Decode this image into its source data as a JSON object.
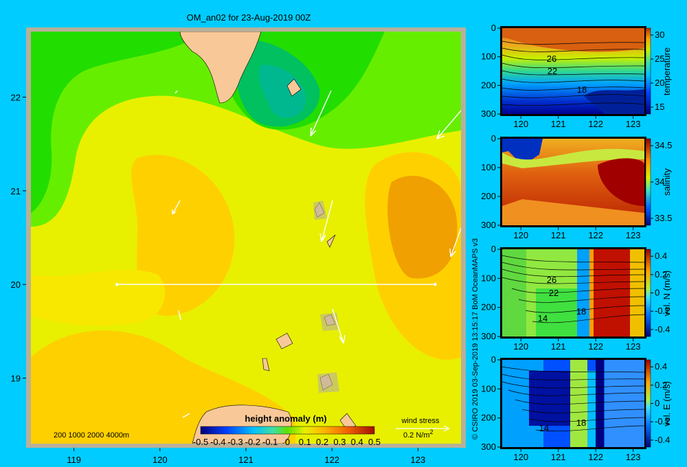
{
  "title": "OM_an02 for 23-Aug-2019 00Z",
  "side_text": "© CSIRO 2019   03-Sep-2019 13:15:17 BoM OceanMAPS v3",
  "map": {
    "lon_ticks": [
      "119",
      "120",
      "121",
      "122",
      "123"
    ],
    "lat_ticks": [
      "22",
      "21",
      "20",
      "19"
    ],
    "lon_range": [
      118.5,
      123.5
    ],
    "lat_range": [
      18.3,
      22.7
    ],
    "section_line": {
      "lon": [
        119.5,
        123.2
      ],
      "lat": [
        20.0,
        20.0
      ]
    },
    "depth_legend": "200  1000  2000  4000m",
    "colorbar": {
      "label": "height anomaly (m)",
      "ticks": [
        "-0.5",
        "-0.4",
        "-0.3",
        "-0.2",
        "-0.1",
        "0",
        "0.1",
        "0.2",
        "0.3",
        "0.4",
        "0.5"
      ]
    },
    "wind": {
      "label": "wind stress",
      "scale_prefix": "0.2 N/m",
      "scale_exp": "2"
    }
  },
  "panels": [
    {
      "var": "temperature",
      "cb_ticks": [
        "30",
        "25",
        "20",
        "15"
      ],
      "contours": [
        "26",
        "22",
        "18"
      ]
    },
    {
      "var": "salinity",
      "cb_ticks": [
        "34.5",
        "34",
        "33.5"
      ],
      "contours": []
    },
    {
      "var": "vel. N (m/s)",
      "cb_ticks": [
        "0.4",
        "0.2",
        "0",
        "-0.2",
        "-0.4"
      ],
      "contours": [
        "26",
        "22",
        "18",
        "14"
      ]
    },
    {
      "var": "vel. E (m/s)",
      "cb_ticks": [
        "0.4",
        "0.2",
        "0",
        "-0.2",
        "-0.4"
      ],
      "contours": [
        "18",
        "14"
      ]
    }
  ],
  "section_axes": {
    "x_ticks": [
      "120",
      "121",
      "122",
      "123"
    ],
    "y_ticks": [
      "0",
      "100",
      "200",
      "300"
    ]
  },
  "chart_data": [
    {
      "type": "heatmap",
      "title": "OM_an02 for 23-Aug-2019 00Z",
      "variable": "height anomaly (m)",
      "xlim": [
        118.5,
        123.5
      ],
      "ylim": [
        18.3,
        22.7
      ],
      "color_range": [
        -0.5,
        0.5
      ],
      "features": [
        {
          "lon": 121.4,
          "lat": 21.9,
          "value": -0.1
        },
        {
          "lon": 120.2,
          "lat": 20.9,
          "value": 0.25
        },
        {
          "lon": 123.0,
          "lat": 20.5,
          "value": 0.4
        },
        {
          "lon": 119.5,
          "lat": 22.3,
          "value": 0.05
        }
      ]
    },
    {
      "type": "heatmap",
      "variable": "temperature",
      "xlim": [
        119.5,
        123.3
      ],
      "ylim": [
        300,
        0
      ],
      "color_range": [
        15,
        31
      ]
    },
    {
      "type": "heatmap",
      "variable": "salinity",
      "xlim": [
        119.5,
        123.3
      ],
      "ylim": [
        300,
        0
      ],
      "color_range": [
        33.3,
        34.9
      ]
    },
    {
      "type": "heatmap",
      "variable": "vel. N (m/s)",
      "xlim": [
        119.5,
        123.3
      ],
      "ylim": [
        300,
        0
      ],
      "color_range": [
        -0.5,
        0.5
      ]
    },
    {
      "type": "heatmap",
      "variable": "vel. E (m/s)",
      "xlim": [
        119.5,
        123.3
      ],
      "ylim": [
        300,
        0
      ],
      "color_range": [
        -0.5,
        0.5
      ]
    }
  ]
}
